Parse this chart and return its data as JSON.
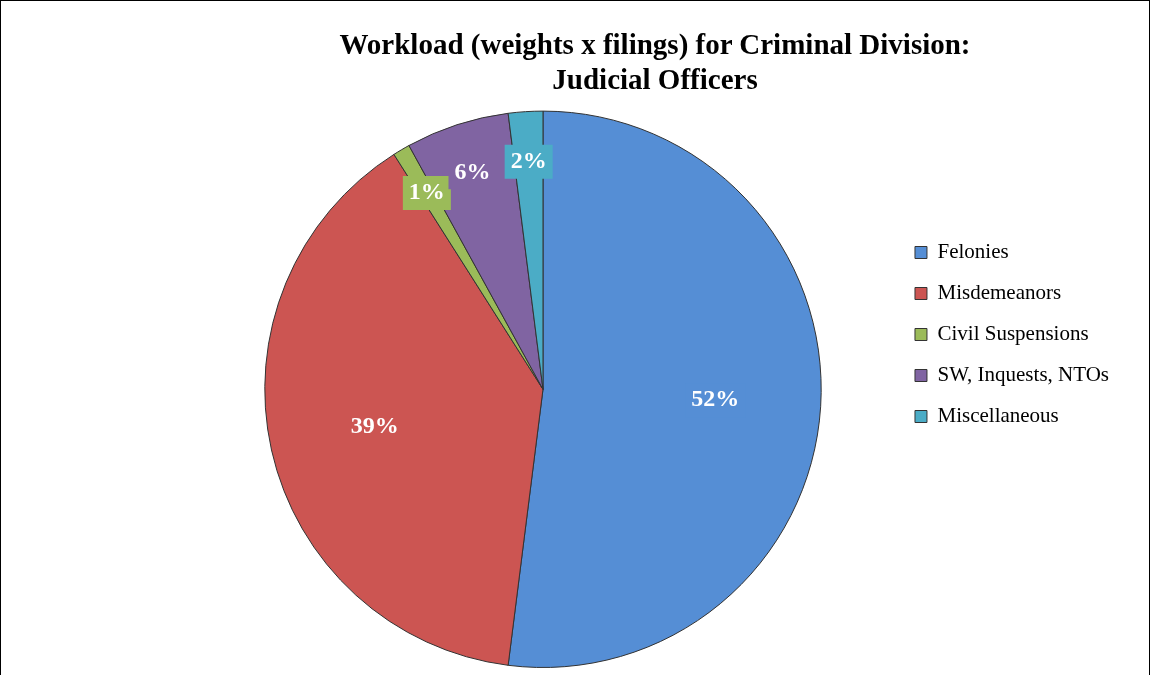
{
  "chart_data": {
    "type": "pie",
    "title": "Workload (weights x filings) for Criminal Division:\nJudicial Officers",
    "categories": [
      "Felonies",
      "Misdemeanors",
      "Civil Suspensions",
      "SW, Inquests, NTOs",
      "Miscellaneous"
    ],
    "values": [
      52,
      39,
      1,
      6,
      2
    ],
    "colors": [
      "#558ed5",
      "#cc5552",
      "#9bbb59",
      "#8064a2",
      "#4bacc6"
    ],
    "value_labels": [
      "52%",
      "39%",
      "1%",
      "6%",
      "2%"
    ],
    "legend": "right"
  }
}
